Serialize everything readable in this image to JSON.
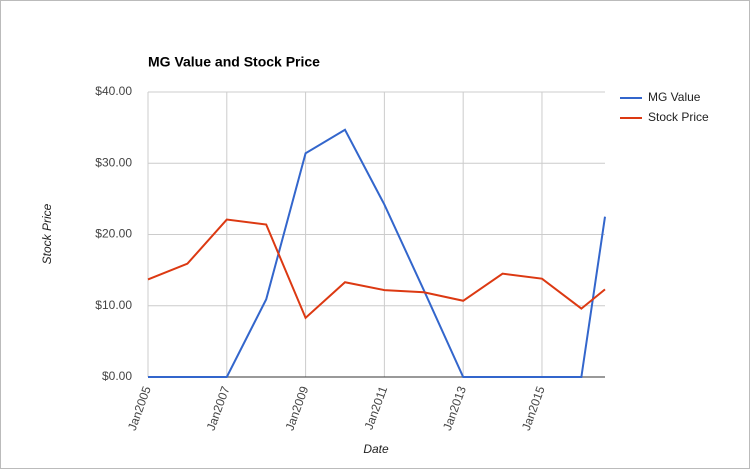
{
  "chart_data": {
    "type": "line",
    "title": "MG Value and Stock Price",
    "x_label": "Date",
    "y_label": "Stock Price",
    "x": [
      2005,
      2006,
      2007,
      2008,
      2009,
      2010,
      2011,
      2012,
      2013,
      2014,
      2015,
      2016,
      2016.6
    ],
    "series": [
      {
        "name": "MG Value",
        "color": "#3366cc",
        "values": [
          0,
          0,
          0,
          10.9,
          31.4,
          34.7,
          24.2,
          12.2,
          0,
          0,
          0,
          0,
          22.5
        ]
      },
      {
        "name": "Stock Price",
        "color": "#dc3912",
        "values": [
          13.7,
          15.9,
          22.1,
          21.4,
          8.3,
          13.3,
          12.2,
          11.9,
          10.7,
          14.5,
          13.8,
          9.6,
          12.3
        ]
      }
    ],
    "xlim": [
      2005,
      2016.6
    ],
    "xticks": [
      {
        "value": 2005,
        "label": "Jan2005"
      },
      {
        "value": 2007,
        "label": "Jan2007"
      },
      {
        "value": 2009,
        "label": "Jan2009"
      },
      {
        "value": 2011,
        "label": "Jan2011"
      },
      {
        "value": 2013,
        "label": "Jan2013"
      },
      {
        "value": 2015,
        "label": "Jan2015"
      }
    ],
    "ylim": [
      0,
      40
    ],
    "yticks": [
      {
        "value": 0,
        "label": "$0.00"
      },
      {
        "value": 10,
        "label": "$10.00"
      },
      {
        "value": 20,
        "label": "$20.00"
      },
      {
        "value": 30,
        "label": "$30.00"
      },
      {
        "value": 40,
        "label": "$40.00"
      }
    ],
    "grid": true,
    "legend": "right"
  }
}
